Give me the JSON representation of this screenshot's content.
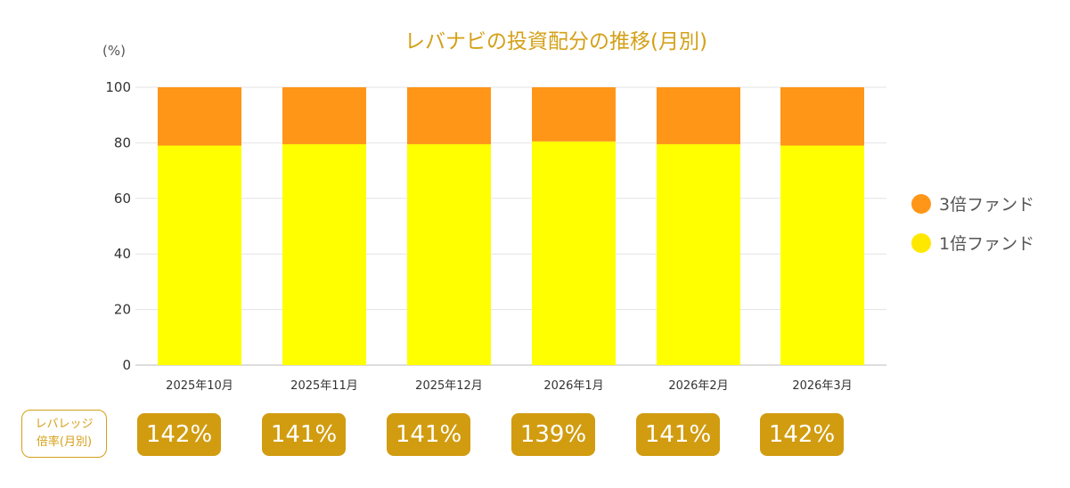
{
  "chart_data": {
    "type": "bar",
    "stacked": true,
    "title": "レバナビの投資配分の推移(月別)",
    "ylabel": "(%)",
    "ylim": [
      0,
      100
    ],
    "yticks": [
      0,
      20,
      40,
      60,
      80,
      100
    ],
    "grid": true,
    "legend_position": "right",
    "categories": [
      "2025年10月",
      "2025年11月",
      "2025年12月",
      "2026年1月",
      "2026年2月",
      "2026年3月"
    ],
    "series": [
      {
        "name": "1倍ファンド",
        "color": "#ffff00",
        "values": [
          79,
          79.5,
          79.5,
          80.5,
          79.5,
          79
        ]
      },
      {
        "name": "3倍ファンド",
        "color": "#ff9618",
        "values": [
          21,
          20.5,
          20.5,
          19.5,
          20.5,
          21
        ]
      }
    ],
    "legend": [
      {
        "name": "3倍ファンド",
        "color": "#ff9618"
      },
      {
        "name": "1倍ファンド",
        "color": "#ffe800"
      }
    ]
  },
  "leverage": {
    "label_line1": "レバレッジ",
    "label_line2": "倍率(月別)",
    "values": [
      "142%",
      "141%",
      "141%",
      "139%",
      "141%",
      "142%"
    ]
  }
}
